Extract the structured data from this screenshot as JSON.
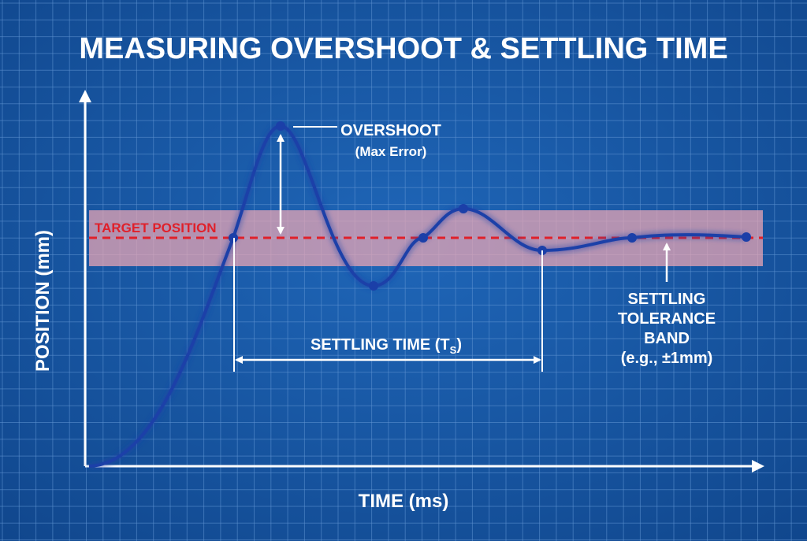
{
  "title": "MEASURING OVERSHOOT & SETTLING TIME",
  "axes": {
    "y_label": "POSITION (mm)",
    "x_label": "TIME (ms)"
  },
  "annotations": {
    "target_position": "TARGET POSITION",
    "overshoot": "OVERSHOOT",
    "overshoot_sub": "(Max Error)",
    "settling_time": "SETTLING TIME (T",
    "settling_time_subscript": "S",
    "settling_time_close": ")",
    "tolerance_lines": [
      "SETTLING",
      "TOLERANCE",
      "BAND",
      "(e.g., ±1mm)"
    ]
  },
  "colors": {
    "background": "#1857a4",
    "grid": "#5f94d2",
    "curve": "#1b3fa8",
    "target_line": "#e0202a",
    "tolerance_band": "#f0a8b4",
    "annotation": "#ffffff"
  }
}
